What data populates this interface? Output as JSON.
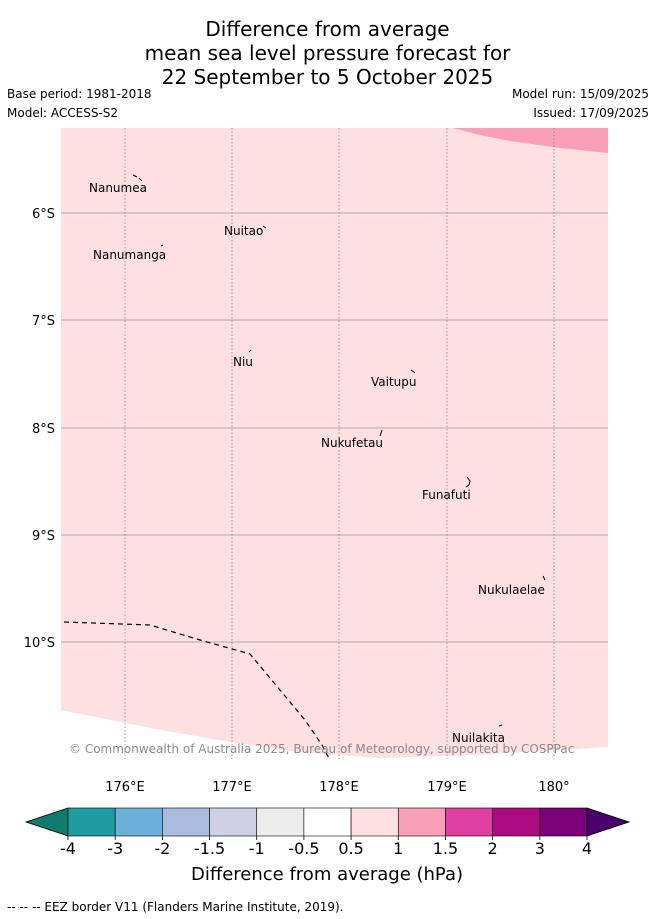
{
  "header": {
    "title_lines": [
      "Difference from average",
      "mean sea level pressure forecast for",
      "22 September to 5 October 2025"
    ],
    "base_period": "Base period: 1981-2018",
    "model": "Model: ACCESS-S2",
    "model_run": "Model run: 15/09/2025",
    "issued": "Issued: 17/09/2025"
  },
  "map": {
    "lat_labels": [
      "6°S",
      "7°S",
      "8°S",
      "9°S",
      "10°S"
    ],
    "lon_labels": [
      "176°E",
      "177°E",
      "178°E",
      "179°E",
      "180°"
    ],
    "places": [
      {
        "name": "Nanumea"
      },
      {
        "name": "Nuitao"
      },
      {
        "name": "Nanumanga"
      },
      {
        "name": "Niu"
      },
      {
        "name": "Vaitupu"
      },
      {
        "name": "Nukufetau"
      },
      {
        "name": "Funafuti"
      },
      {
        "name": "Nukulaelae"
      },
      {
        "name": "Nuilakita"
      }
    ],
    "copyright": "© Commonwealth of Australia 2025, Bureau of Meteorology, supported by COSPPac",
    "colors": {
      "anomaly_0_5_to_1": "#fde0df",
      "anomaly_1_to_1_5": "#f9a0b8"
    }
  },
  "colorbar": {
    "tick_labels": [
      "-4",
      "-3",
      "-2",
      "-1.5",
      "-1",
      "-0.5",
      "0.5",
      "1",
      "1.5",
      "2",
      "3",
      "4"
    ],
    "colors": [
      "#0f7a6e",
      "#1f9aa0",
      "#6baed6",
      "#a9bcdc",
      "#cfd0e6",
      "#ececec",
      "#ffffff",
      "#fde0df",
      "#f9a0b8",
      "#df3fa0",
      "#ad0b80",
      "#7a0177",
      "#49006a"
    ],
    "title": "Difference from average (hPa)"
  },
  "legend": {
    "eez_label": "--  --  -- EEZ border V11 (Flanders Marine Institute, 2019)."
  }
}
